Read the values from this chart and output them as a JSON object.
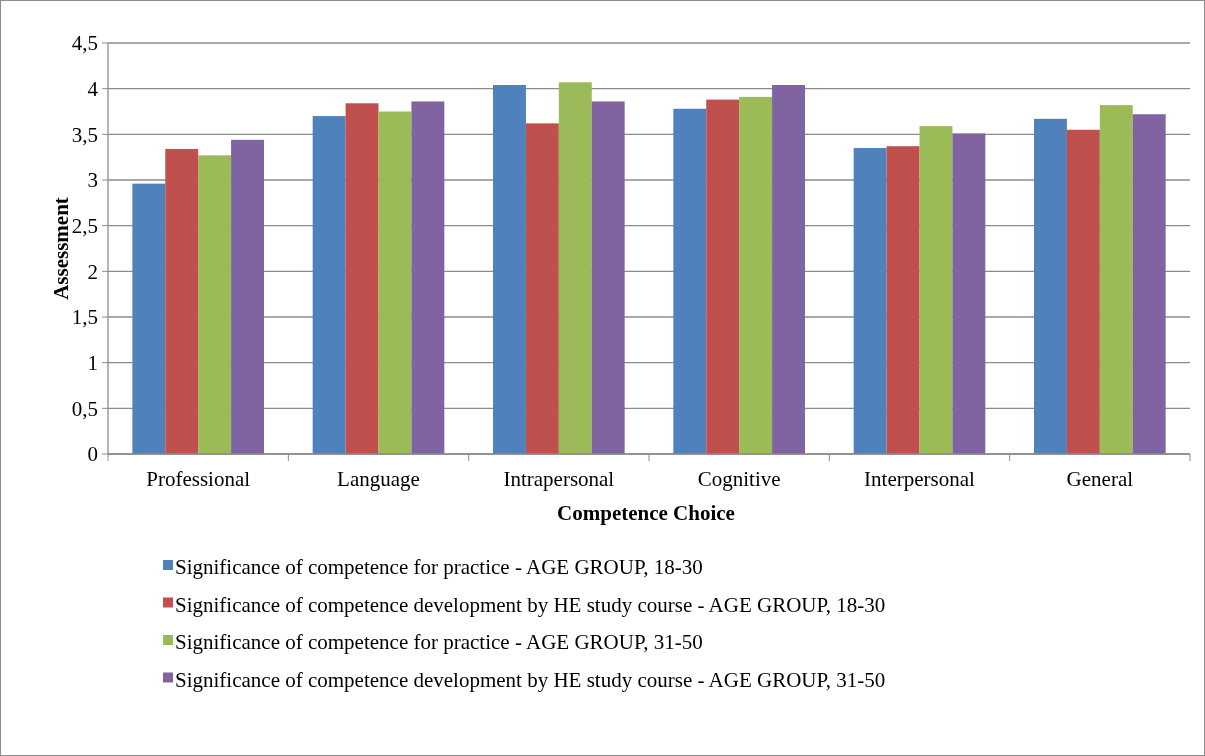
{
  "chart_data": {
    "type": "bar",
    "xlabel": "Competence Choice",
    "ylabel": "Assessment",
    "categories": [
      "Professional",
      "Language",
      "Intrapersonal",
      "Cognitive",
      "Interpersonal",
      "General"
    ],
    "series": [
      {
        "name": "Significance of competence for practice - AGE GROUP, 18-30",
        "color": "#4f81bd",
        "values": [
          2.96,
          3.7,
          4.04,
          3.78,
          3.35,
          3.67
        ]
      },
      {
        "name": "Significance of competence development by HE study course - AGE GROUP, 18-30",
        "color": "#c0504d",
        "values": [
          3.34,
          3.84,
          3.62,
          3.88,
          3.37,
          3.55
        ]
      },
      {
        "name": "Significance of competence for practice - AGE GROUP, 31-50",
        "color": "#9bbb59",
        "values": [
          3.27,
          3.75,
          4.07,
          3.91,
          3.59,
          3.82
        ]
      },
      {
        "name": "Significance of competence development by HE study course - AGE GROUP, 31-50",
        "color": "#8064a2",
        "values": [
          3.44,
          3.86,
          3.86,
          4.04,
          3.51,
          3.72
        ]
      }
    ],
    "ylim": [
      0,
      4.5
    ],
    "yticks": [
      0,
      {
        "value": 0.5,
        "label": "0,5"
      },
      1,
      {
        "value": 1.5,
        "label": "1,5"
      },
      2,
      {
        "value": 2.5,
        "label": "2,5"
      },
      3,
      {
        "value": 3.5,
        "label": "3,5"
      },
      4,
      {
        "value": 4.5,
        "label": "4,5"
      }
    ],
    "grid": "y",
    "legend": "bottom"
  }
}
